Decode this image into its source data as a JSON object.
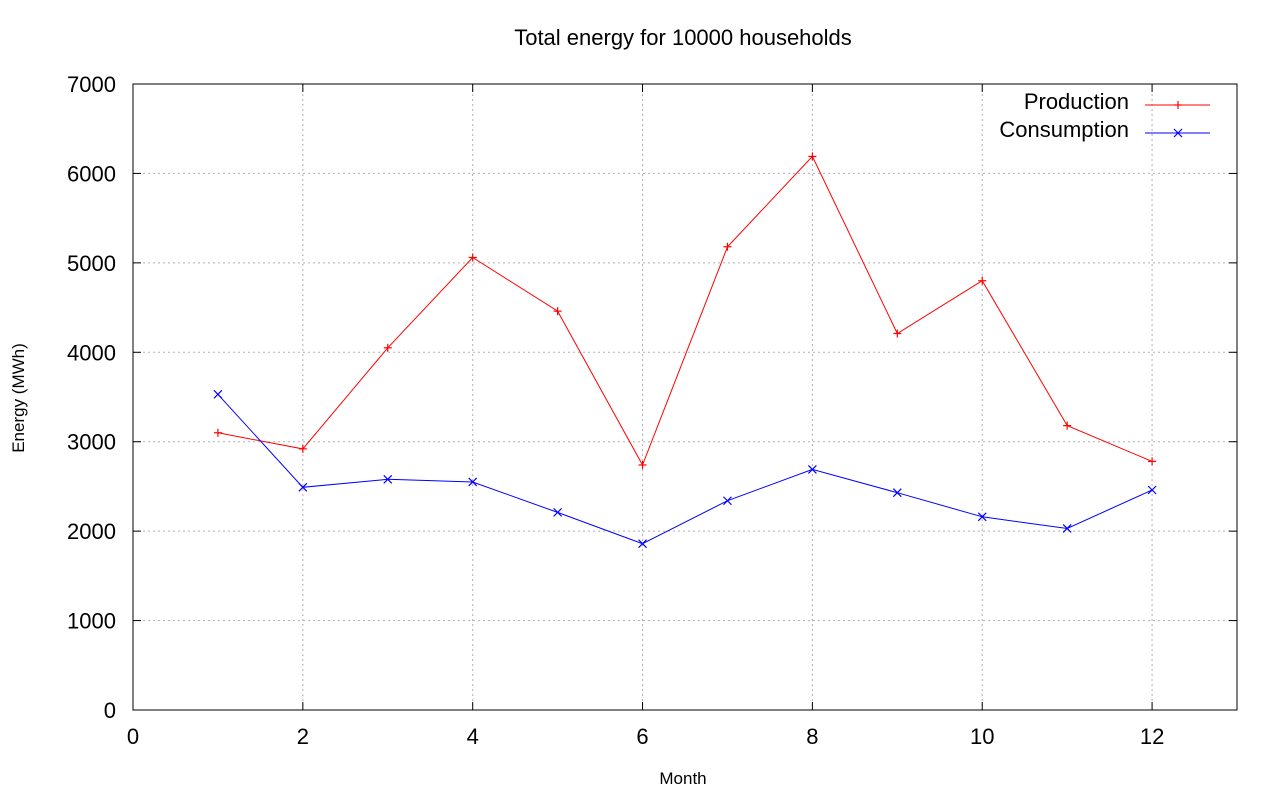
{
  "chart_data": {
    "type": "line",
    "title": "Total energy for 10000 households",
    "xlabel": "Month",
    "ylabel": "Energy (MWh)",
    "xlim": [
      0,
      13
    ],
    "ylim": [
      0,
      7000
    ],
    "xticks": [
      0,
      2,
      4,
      6,
      8,
      10,
      12
    ],
    "yticks": [
      0,
      1000,
      2000,
      3000,
      4000,
      5000,
      6000,
      7000
    ],
    "grid": true,
    "legend_position": "top-right",
    "x": [
      1,
      2,
      3,
      4,
      5,
      6,
      7,
      8,
      9,
      10,
      11,
      12
    ],
    "series": [
      {
        "name": "Production",
        "color": "#ff0000",
        "marker": "plus",
        "values": [
          3100,
          2920,
          4050,
          5060,
          4460,
          2740,
          5180,
          6190,
          4210,
          4800,
          3180,
          2780
        ]
      },
      {
        "name": "Consumption",
        "color": "#0000ff",
        "marker": "cross",
        "values": [
          3530,
          2490,
          2580,
          2550,
          2210,
          1860,
          2340,
          2690,
          2430,
          2160,
          2030,
          2460
        ]
      }
    ]
  }
}
